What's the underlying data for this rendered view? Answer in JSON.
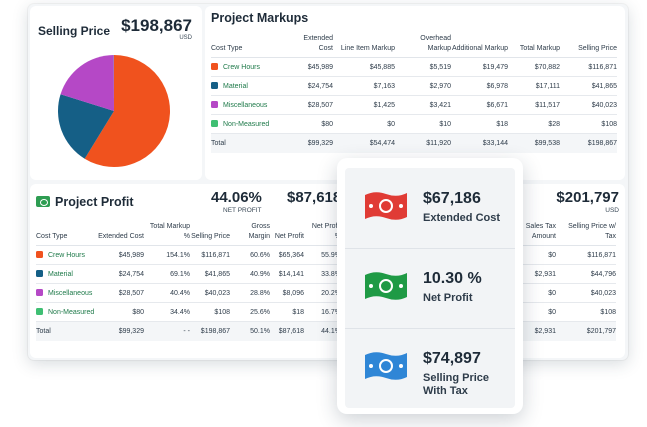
{
  "selling_price": {
    "title": "Selling Price",
    "amount": "$198,867",
    "currency": "USD"
  },
  "chart_data": {
    "type": "pie",
    "categories": [
      "Crew Hours",
      "Material",
      "Miscellaneous",
      "Non-Measured"
    ],
    "values": [
      116871,
      41865,
      40023,
      108
    ],
    "colors": [
      "#f0521e",
      "#155f86",
      "#b548c6",
      "#3fbf73"
    ]
  },
  "markups": {
    "title": "Project Markups",
    "headers": [
      "Cost Type",
      "Extended Cost",
      "Line Item Markup",
      "Overhead Markup",
      "Additional Markup",
      "Total Markup",
      "Selling Price"
    ],
    "rows": [
      {
        "name": "Crew Hours",
        "color": "#f0521e",
        "cells": [
          "$45,989",
          "$45,885",
          "$5,519",
          "$19,479",
          "$70,882",
          "$116,871"
        ]
      },
      {
        "name": "Material",
        "color": "#155f86",
        "cells": [
          "$24,754",
          "$7,163",
          "$2,970",
          "$6,978",
          "$17,111",
          "$41,865"
        ]
      },
      {
        "name": "Miscellaneous",
        "color": "#b548c6",
        "cells": [
          "$28,507",
          "$1,425",
          "$3,421",
          "$6,671",
          "$11,517",
          "$40,023"
        ]
      },
      {
        "name": "Non-Measured",
        "color": "#3fbf73",
        "cells": [
          "$80",
          "$0",
          "$10",
          "$18",
          "$28",
          "$108"
        ]
      }
    ],
    "total": {
      "name": "Total",
      "cells": [
        "$99,329",
        "$54,474",
        "$11,920",
        "$33,144",
        "$99,538",
        "$198,867"
      ]
    }
  },
  "profit": {
    "title": "Project Profit",
    "net_profit_pct": "44.06%",
    "net_profit_label": "NET PROFIT",
    "amount_partial": "$87,618",
    "right_amount": "$201,797",
    "right_currency": "USD",
    "headers": [
      "Cost Type",
      "Extended Cost",
      "Total Markup %",
      "Selling Price",
      "Gross Margin",
      "Net Profit",
      "Net Profit %"
    ],
    "right_headers": [
      "Sales Tax Amount",
      "Selling Price w/ Tax"
    ],
    "rows": [
      {
        "name": "Crew Hours",
        "color": "#f0521e",
        "cells": [
          "$45,989",
          "154.1%",
          "$116,871",
          "60.6%",
          "$65,364",
          "55.9%"
        ],
        "right": [
          "$0",
          "$116,871"
        ]
      },
      {
        "name": "Material",
        "color": "#155f86",
        "cells": [
          "$24,754",
          "69.1%",
          "$41,865",
          "40.9%",
          "$14,141",
          "33.8%"
        ],
        "right": [
          "$2,931",
          "$44,796"
        ]
      },
      {
        "name": "Miscellaneous",
        "color": "#b548c6",
        "cells": [
          "$28,507",
          "40.4%",
          "$40,023",
          "28.8%",
          "$8,096",
          "20.2%"
        ],
        "right": [
          "$0",
          "$40,023"
        ]
      },
      {
        "name": "Non-Measured",
        "color": "#3fbf73",
        "cells": [
          "$80",
          "34.4%",
          "$108",
          "25.6%",
          "$18",
          "16.7%"
        ],
        "right": [
          "$0",
          "$108"
        ]
      }
    ],
    "total": {
      "name": "Total",
      "cells": [
        "$99,329",
        "- -",
        "$198,867",
        "50.1%",
        "$87,618",
        "44.1%"
      ],
      "right": [
        "$2,931",
        "$201,797"
      ]
    }
  },
  "summary": [
    {
      "value": "$67,186",
      "label": "Extended Cost",
      "icon": "red-money-bill-icon",
      "color": "#e03b35"
    },
    {
      "value": "10.30 %",
      "label": "Net Profit",
      "icon": "green-money-bill-icon",
      "color": "#1f9a45"
    },
    {
      "value": "$74,897",
      "label": "Selling Price With Tax",
      "icon": "blue-money-bill-icon",
      "color": "#2f86d6"
    }
  ]
}
